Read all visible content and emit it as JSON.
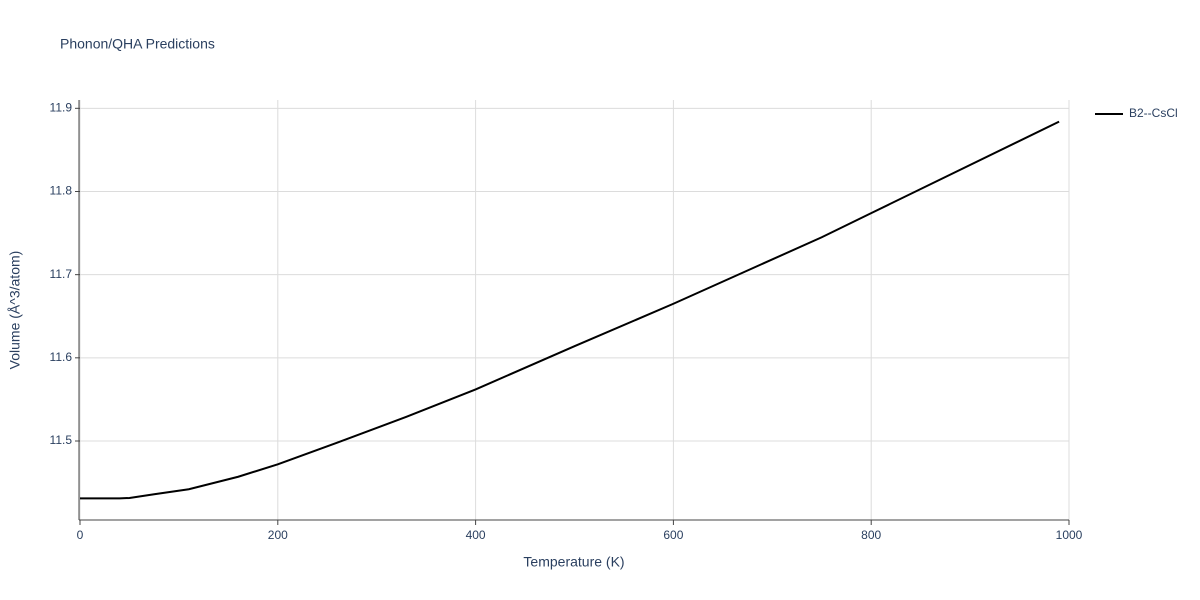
{
  "chart_data": {
    "type": "line",
    "title": "Phonon/QHA Predictions",
    "x_label": "Temperature (K)",
    "y_label": "Volume (Å^3/atom)",
    "x": [
      0,
      40,
      50,
      75,
      110,
      160,
      200,
      260,
      330,
      400,
      500,
      600,
      750,
      800,
      990
    ],
    "series": [
      {
        "name": "B2--CsCl",
        "color": "#000000",
        "values": [
          11.431,
          11.431,
          11.4315,
          11.436,
          11.442,
          11.457,
          11.472,
          11.498,
          11.529,
          11.562,
          11.614,
          11.665,
          11.745,
          11.774,
          11.884
        ]
      }
    ],
    "xlim": [
      0,
      1000
    ],
    "xticks": [
      0,
      200,
      400,
      600,
      800,
      1000
    ],
    "ylim": [
      11.405,
      11.91
    ],
    "yticks": [
      11.5,
      11.6,
      11.7,
      11.8,
      11.9
    ],
    "grid": true,
    "legend": "right"
  }
}
